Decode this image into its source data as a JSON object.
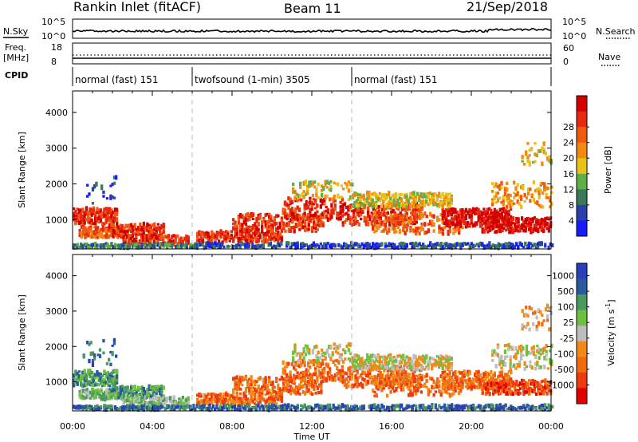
{
  "header": {
    "station": "Rankin Inlet (fitACF)",
    "beam": "Beam 11",
    "date": "21/Sep/2018"
  },
  "strip": {
    "nsky_label": "N.Sky",
    "nsky_ticks": [
      "10^5",
      "10^0"
    ],
    "nsearch_label": "N.Search",
    "nsearch_ticks": [
      "10^5",
      "10^0"
    ],
    "freq_label": "Freq.",
    "freq_unit": "[MHz]",
    "freq_ticks": [
      "18",
      "8"
    ],
    "nave_label": "Nave",
    "nave_ticks": [
      "60",
      "0"
    ],
    "cpid_label": "CPID",
    "cpid_segments": [
      {
        "label": "normal (fast) 151",
        "start_h": 0,
        "end_h": 6
      },
      {
        "label": "twofsound (1-min) 3505",
        "start_h": 6,
        "end_h": 14
      },
      {
        "label": "normal (fast) 151",
        "start_h": 14,
        "end_h": 24
      }
    ]
  },
  "colors": {
    "power": [
      "#1a1aff",
      "#2a3fa8",
      "#3a7a5a",
      "#5fae48",
      "#e6c21a",
      "#f08a10",
      "#ef5a10",
      "#e52a10",
      "#d40000"
    ],
    "velocity": [
      "#e00000",
      "#ef3a10",
      "#f06a10",
      "#f28a18",
      "#bdbdbd",
      "#6fc040",
      "#4a9a60",
      "#2a5aa0",
      "#2a3fb8"
    ]
  },
  "chart_data": [
    {
      "type": "heatmap",
      "name_panel": "power",
      "ylabel": "Slant Range [km]",
      "xlabel": "Time UT",
      "ylim": [
        180,
        4600
      ],
      "xlim": [
        0,
        24
      ],
      "y_ticks": [
        "1000",
        "2000",
        "3000",
        "4000"
      ],
      "x_ticks": [
        "00:00",
        "04:00",
        "08:00",
        "12:00",
        "16:00",
        "20:00",
        "00:00"
      ],
      "colorbar_label": "Power [dB]",
      "colorbar_ticks": [
        "4",
        "8",
        "12",
        "16",
        "20",
        "24",
        "28"
      ],
      "mode_change_lines_h": [
        6,
        14
      ]
    },
    {
      "type": "heatmap",
      "name_panel": "velocity",
      "ylabel": "Slant Range [km]",
      "xlabel": "Time UT",
      "ylim": [
        180,
        4600
      ],
      "xlim": [
        0,
        24
      ],
      "y_ticks": [
        "1000",
        "2000",
        "3000",
        "4000"
      ],
      "x_ticks": [
        "00:00",
        "04:00",
        "08:00",
        "12:00",
        "16:00",
        "20:00",
        "00:00"
      ],
      "colorbar_label": "Velocity [m s",
      "colorbar_label_sup": "-1",
      "colorbar_label_end": "]",
      "colorbar_ticks": [
        "1000",
        "500",
        "100",
        "25",
        "-25",
        "-100",
        "-500",
        "-1000"
      ],
      "mode_change_lines_h": [
        6,
        14
      ]
    }
  ]
}
